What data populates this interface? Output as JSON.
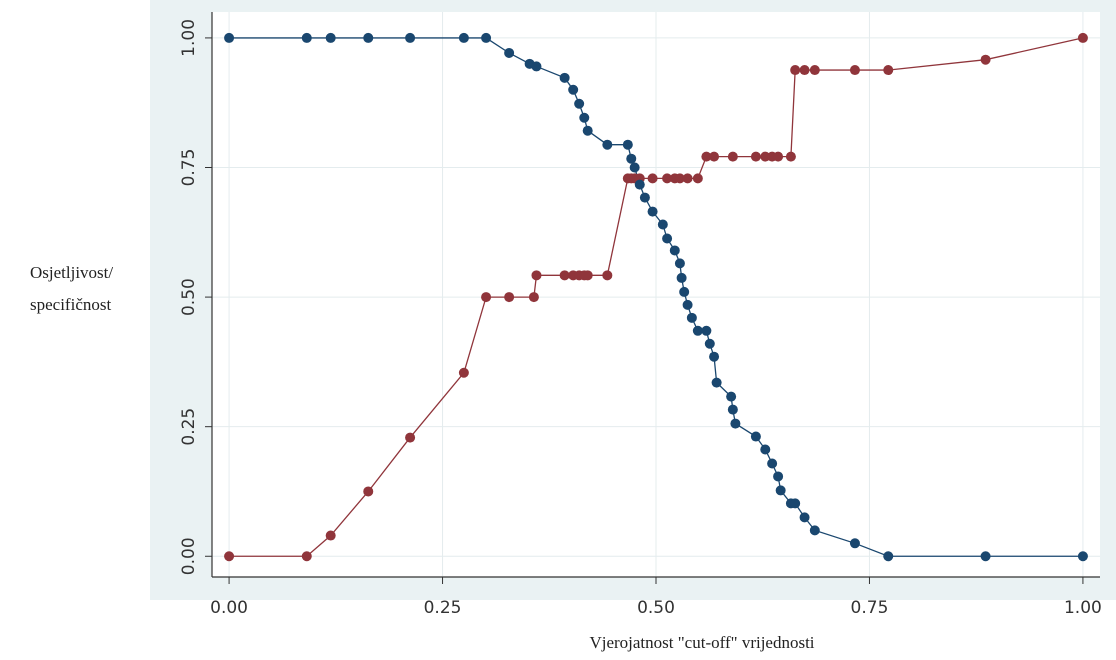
{
  "chart_data": {
    "type": "line",
    "y_axis_title": [
      "Osjetljivost/",
      "specifičnost"
    ],
    "x_axis_title": "Vjerojatnost \"cut-off\" vrijednosti",
    "xlim": [
      -0.02,
      1.02
    ],
    "ylim": [
      -0.04,
      1.05
    ],
    "xticks": [
      {
        "value": 0,
        "label": "0.00"
      },
      {
        "value": 0.25,
        "label": "0.25"
      },
      {
        "value": 0.5,
        "label": "0.50"
      },
      {
        "value": 0.75,
        "label": "0.75"
      },
      {
        "value": 1,
        "label": "1.00"
      }
    ],
    "yticks": [
      {
        "value": 0,
        "label": "0.00"
      },
      {
        "value": 0.25,
        "label": "0.25"
      },
      {
        "value": 0.5,
        "label": "0.50"
      },
      {
        "value": 0.75,
        "label": "0.75"
      },
      {
        "value": 1,
        "label": "1.00"
      }
    ],
    "grid": true,
    "series": [
      {
        "color": "#90353b",
        "x": [
          0,
          0.091,
          0.119,
          0.163,
          0.212,
          0.275,
          0.301,
          0.328,
          0.357,
          0.36,
          0.393,
          0.403,
          0.41,
          0.416,
          0.42,
          0.443,
          0.467,
          0.471,
          0.475,
          0.481,
          0.496,
          0.513,
          0.522,
          0.528,
          0.537,
          0.549,
          0.559,
          0.568,
          0.59,
          0.617,
          0.628,
          0.636,
          0.643,
          0.658,
          0.663,
          0.674,
          0.686,
          0.733,
          0.772,
          0.886,
          1
        ],
        "values": [
          0,
          0,
          0.04,
          0.125,
          0.229,
          0.354,
          0.5,
          0.5,
          0.5,
          0.542,
          0.542,
          0.542,
          0.542,
          0.542,
          0.542,
          0.542,
          0.729,
          0.729,
          0.729,
          0.729,
          0.729,
          0.729,
          0.729,
          0.729,
          0.729,
          0.729,
          0.771,
          0.771,
          0.771,
          0.771,
          0.771,
          0.771,
          0.771,
          0.771,
          0.938,
          0.938,
          0.938,
          0.938,
          0.938,
          0.958,
          1
        ]
      },
      {
        "color": "#1a476f",
        "x": [
          0,
          0.091,
          0.119,
          0.163,
          0.212,
          0.275,
          0.301,
          0.328,
          0.352,
          0.36,
          0.393,
          0.403,
          0.41,
          0.416,
          0.42,
          0.443,
          0.467,
          0.471,
          0.475,
          0.481,
          0.487,
          0.496,
          0.508,
          0.513,
          0.522,
          0.528,
          0.53,
          0.533,
          0.537,
          0.542,
          0.549,
          0.559,
          0.563,
          0.568,
          0.571,
          0.588,
          0.59,
          0.593,
          0.617,
          0.628,
          0.636,
          0.643,
          0.646,
          0.658,
          0.663,
          0.674,
          0.686,
          0.733,
          0.772,
          0.886,
          1
        ],
        "values": [
          1,
          1,
          1,
          1,
          1,
          1,
          1,
          0.971,
          0.95,
          0.945,
          0.923,
          0.9,
          0.873,
          0.846,
          0.821,
          0.794,
          0.794,
          0.767,
          0.75,
          0.717,
          0.692,
          0.665,
          0.64,
          0.613,
          0.59,
          0.565,
          0.537,
          0.51,
          0.485,
          0.46,
          0.435,
          0.435,
          0.41,
          0.385,
          0.335,
          0.308,
          0.283,
          0.256,
          0.231,
          0.206,
          0.179,
          0.154,
          0.127,
          0.102,
          0.102,
          0.075,
          0.05,
          0.025,
          0,
          0,
          0
        ]
      }
    ]
  }
}
